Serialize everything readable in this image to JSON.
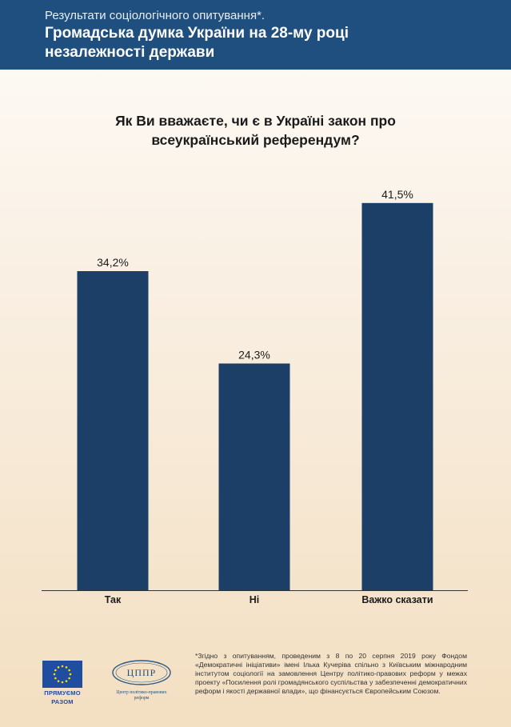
{
  "header": {
    "subtitle": "Результати соціологічного опитування*.",
    "title_line1": "Громадська думка України на 28-му році",
    "title_line2": "незалежності держави"
  },
  "question": {
    "line1": "Як Ви вважаєте, чи є в Україні закон про",
    "line2": "всеукраїнський референдум?"
  },
  "chart_data": {
    "type": "bar",
    "categories": [
      "Так",
      "Ні",
      "Важко сказати"
    ],
    "values": [
      34.2,
      24.3,
      41.5
    ],
    "value_labels": [
      "34,2%",
      "24,3%",
      "41,5%"
    ],
    "title": "Як Ви вважаєте, чи є в Україні закон про всеукраїнський референдум?",
    "ylim": [
      0,
      45
    ],
    "grid": false,
    "bar_color": "#1b3f66"
  },
  "footnote": "*Згідно з опитуванням, проведеним з 8 по 20 серпня 2019 року Фондом «Демократичні ініціативи» імені Ілька Кучеріва спільно з Київським міжнародним інститутом соціології на замовлення Центру політико-правових реформ у межах проекту «Посилення ролі громадянського суспільства у забезпеченні демократичних реформ і якості державної влади», що фінансується Європейським Союзом.",
  "logos": {
    "eu_line1": "ПРЯМУЄМО",
    "eu_line2": "РАЗОМ",
    "cppr_abbr": "ЦППР",
    "cppr_line1": "Центр політико-правових",
    "cppr_line2": "реформ"
  },
  "colors": {
    "header_bg": "#1e4f7f",
    "bar": "#1b3f66",
    "eu_blue": "#1f4da0",
    "eu_star": "#ffdd00"
  }
}
